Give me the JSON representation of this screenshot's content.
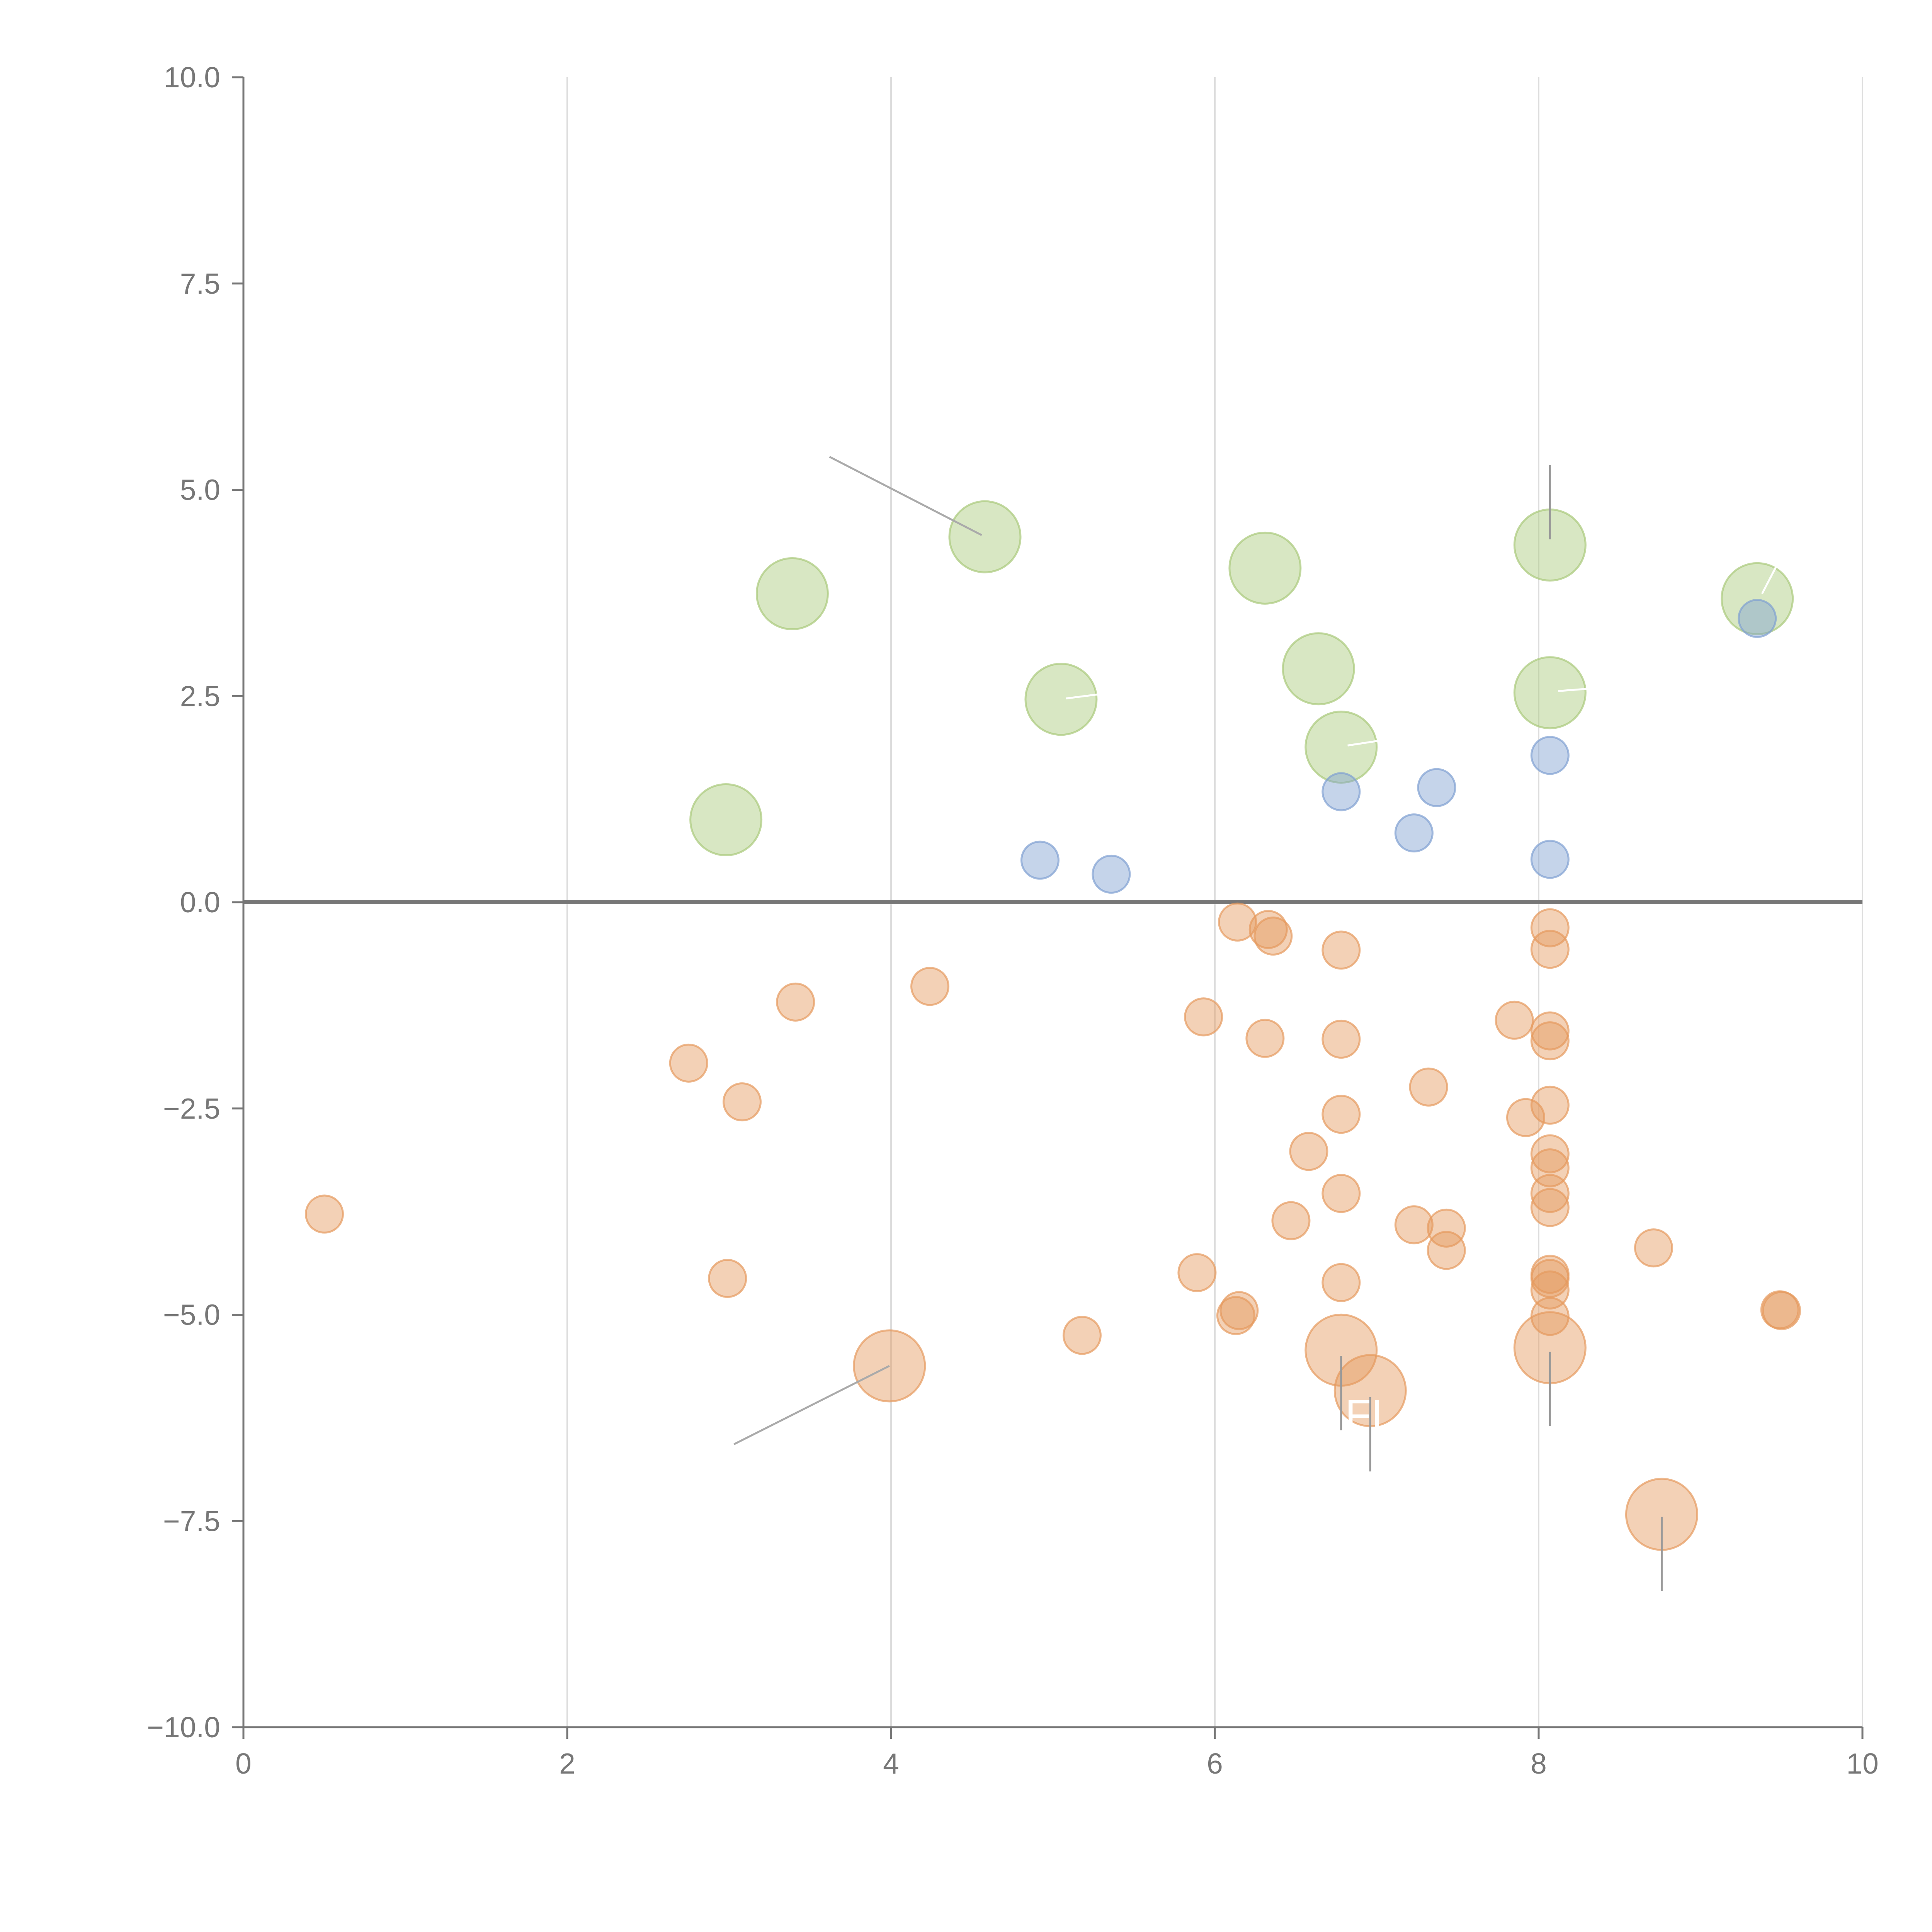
{
  "chart_data": {
    "type": "scatter",
    "title": "",
    "xlabel": "",
    "ylabel": "",
    "xlim": [
      0,
      10
    ],
    "ylim": [
      -10,
      10
    ],
    "x_ticks": [
      0,
      2,
      4,
      6,
      8,
      10
    ],
    "x_tick_labels": [
      "0",
      "2",
      "4",
      "6",
      "8",
      "10"
    ],
    "y_ticks": [
      10,
      7.5,
      5,
      2.5,
      0,
      -2.5,
      -5,
      -7.5,
      -10
    ],
    "y_tick_labels": [
      "10.0",
      "7.5",
      "5.0",
      "2.5",
      "0.0",
      "−2.5",
      "−5.0",
      "−7.5",
      "−10.0"
    ],
    "grid": "vertical",
    "zero_line": true,
    "series": [
      {
        "name": "green",
        "color": "#a9c97a",
        "size": "large",
        "points": [
          {
            "x": 4.58,
            "y": 4.43
          },
          {
            "x": 3.39,
            "y": 3.74
          },
          {
            "x": 6.31,
            "y": 4.05
          },
          {
            "x": 8.07,
            "y": 4.33
          },
          {
            "x": 9.35,
            "y": 3.68
          },
          {
            "x": 5.05,
            "y": 2.46
          },
          {
            "x": 6.64,
            "y": 2.83
          },
          {
            "x": 8.07,
            "y": 2.54
          },
          {
            "x": 6.78,
            "y": 1.88
          },
          {
            "x": 2.98,
            "y": 1.0
          }
        ]
      },
      {
        "name": "blue",
        "color": "#7f9fd1",
        "size": "small",
        "points": [
          {
            "x": 9.35,
            "y": 3.44
          },
          {
            "x": 8.07,
            "y": 1.78
          },
          {
            "x": 7.37,
            "y": 1.39
          },
          {
            "x": 6.78,
            "y": 1.34
          },
          {
            "x": 7.23,
            "y": 0.84
          },
          {
            "x": 8.07,
            "y": 0.52
          },
          {
            "x": 4.92,
            "y": 0.51
          },
          {
            "x": 5.36,
            "y": 0.34
          }
        ]
      },
      {
        "name": "orange",
        "color": "#e59a5e",
        "size": "small",
        "points": [
          {
            "x": 6.14,
            "y": -0.24
          },
          {
            "x": 6.33,
            "y": -0.33
          },
          {
            "x": 6.36,
            "y": -0.41
          },
          {
            "x": 6.78,
            "y": -0.58
          },
          {
            "x": 8.07,
            "y": -0.31
          },
          {
            "x": 8.07,
            "y": -0.57
          },
          {
            "x": 4.24,
            "y": -1.02
          },
          {
            "x": 3.41,
            "y": -1.21
          },
          {
            "x": 5.93,
            "y": -1.39
          },
          {
            "x": 6.31,
            "y": -1.65
          },
          {
            "x": 6.78,
            "y": -1.66
          },
          {
            "x": 7.85,
            "y": -1.43
          },
          {
            "x": 8.07,
            "y": -1.56
          },
          {
            "x": 8.07,
            "y": -1.68
          },
          {
            "x": 2.75,
            "y": -1.95
          },
          {
            "x": 3.08,
            "y": -2.42
          },
          {
            "x": 7.32,
            "y": -2.24
          },
          {
            "x": 8.07,
            "y": -2.46
          },
          {
            "x": 6.78,
            "y": -2.57
          },
          {
            "x": 7.92,
            "y": -2.61
          },
          {
            "x": 6.58,
            "y": -3.02
          },
          {
            "x": 8.07,
            "y": -3.05
          },
          {
            "x": 8.07,
            "y": -3.22
          },
          {
            "x": 6.78,
            "y": -3.53
          },
          {
            "x": 8.07,
            "y": -3.53
          },
          {
            "x": 8.07,
            "y": -3.7
          },
          {
            "x": 0.5,
            "y": -3.78
          },
          {
            "x": 6.47,
            "y": -3.86
          },
          {
            "x": 7.23,
            "y": -3.91
          },
          {
            "x": 7.43,
            "y": -3.95
          },
          {
            "x": 7.43,
            "y": -4.22
          },
          {
            "x": 8.71,
            "y": -4.19
          },
          {
            "x": 5.89,
            "y": -4.49
          },
          {
            "x": 2.99,
            "y": -4.56
          },
          {
            "x": 6.78,
            "y": -4.61
          },
          {
            "x": 8.07,
            "y": -4.51
          },
          {
            "x": 8.07,
            "y": -4.56
          },
          {
            "x": 8.07,
            "y": -4.7
          },
          {
            "x": 6.15,
            "y": -4.95
          },
          {
            "x": 6.13,
            "y": -5.01
          },
          {
            "x": 8.07,
            "y": -5.02
          },
          {
            "x": 9.49,
            "y": -4.94
          },
          {
            "x": 9.5,
            "y": -4.95
          },
          {
            "x": 5.18,
            "y": -5.25
          }
        ]
      },
      {
        "name": "orange-large",
        "color": "#e59a5e",
        "size": "large",
        "points": [
          {
            "x": 3.99,
            "y": -5.62
          },
          {
            "x": 6.78,
            "y": -5.43
          },
          {
            "x": 6.96,
            "y": -5.92
          },
          {
            "x": 8.07,
            "y": -5.4
          },
          {
            "x": 8.76,
            "y": -7.42
          }
        ]
      }
    ],
    "annotations": [
      {
        "text": "",
        "x": 4.58,
        "y": 4.43
      },
      {
        "text": "FI",
        "x": 6.96,
        "y": -5.92
      }
    ]
  }
}
